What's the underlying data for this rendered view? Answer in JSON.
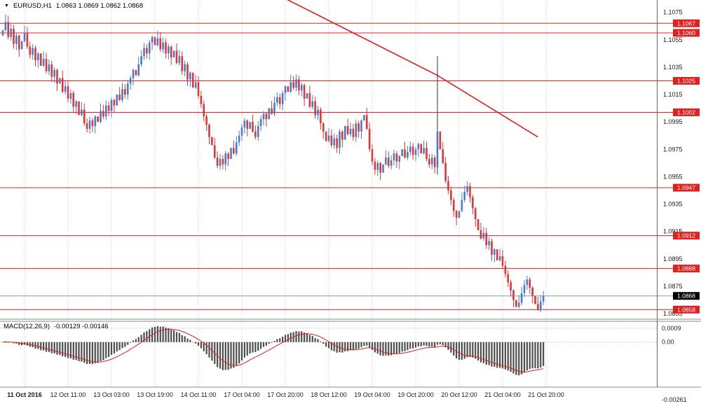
{
  "header": {
    "symbol_timeframe": "EURUSD,H1",
    "ohlc": "1.0863 1.0869 1.0862 1.0868"
  },
  "indicator_header": {
    "name": "MACD(12,26,9)",
    "values": "-0.00129 -0.00146"
  },
  "chart_data": {
    "type": "candlestick",
    "symbol": "EURUSD",
    "timeframe": "H1",
    "open_first": 1.1058,
    "closes": [
      1.1062,
      1.1068,
      1.1057,
      1.1063,
      1.1052,
      1.1058,
      1.1048,
      1.1054,
      1.106,
      1.105,
      1.1044,
      1.1049,
      1.104,
      1.1045,
      1.1036,
      1.1041,
      1.1032,
      1.1037,
      1.1028,
      1.1033,
      1.1023,
      1.1027,
      1.1017,
      1.1021,
      1.1012,
      1.1016,
      1.1006,
      1.101,
      1.1,
      1.1004,
      1.0994,
      1.099,
      1.0996,
      1.0992,
      1.0999,
      1.0995,
      1.1003,
      1.0999,
      1.1007,
      1.1003,
      1.1011,
      1.1007,
      1.1015,
      1.1011,
      1.1019,
      1.1015,
      1.1023,
      1.1027,
      1.1033,
      1.1029,
      1.1037,
      1.1043,
      1.1049,
      1.1045,
      1.1053,
      1.1057,
      1.1051,
      1.1056,
      1.1048,
      1.1053,
      1.1045,
      1.105,
      1.1042,
      1.1047,
      1.1038,
      1.1043,
      1.1032,
      1.1037,
      1.1026,
      1.1031,
      1.102,
      1.1024,
      1.1014,
      1.1008,
      1.0999,
      1.0993,
      1.0984,
      1.0978,
      1.0969,
      1.0963,
      1.0968,
      1.0964,
      1.0972,
      1.0968,
      1.0976,
      1.0972,
      1.098,
      1.0985,
      1.0991,
      1.0996,
      1.099,
      1.0995,
      1.0988,
      1.0984,
      1.0992,
      1.0997,
      1.1001,
      1.0997,
      1.1005,
      1.1001,
      1.1009,
      1.1013,
      1.1008,
      1.1016,
      1.1021,
      1.1017,
      1.1024,
      1.102,
      1.1026,
      1.1018,
      1.1022,
      1.1012,
      1.1016,
      1.1006,
      1.101,
      1.1,
      1.1004,
      1.0994,
      1.0988,
      1.0981,
      1.0985,
      1.0978,
      1.0983,
      1.0976,
      1.0988,
      1.0982,
      1.0992,
      1.0986,
      1.099,
      1.0984,
      1.0994,
      1.0988,
      1.0996,
      1.1,
      1.099,
      1.0975,
      1.0966,
      1.096,
      1.0965,
      1.0958,
      1.0964,
      1.0969,
      1.0963,
      1.0967,
      1.0972,
      1.0966,
      1.097,
      1.0975,
      1.0969,
      1.0973,
      1.0977,
      1.0971,
      1.0975,
      1.0979,
      1.0972,
      1.0976,
      1.0968,
      1.0964,
      1.0969,
      1.0962,
      1.0988,
      1.0975,
      1.0965,
      1.0952,
      1.0945,
      1.0938,
      1.093,
      1.0925,
      1.093,
      1.0938,
      1.0944,
      1.0948,
      1.094,
      1.0932,
      1.0924,
      1.0916,
      1.091,
      1.0914,
      1.0905,
      1.0908,
      1.0898,
      1.0902,
      1.0894,
      1.0897,
      1.089,
      1.0884,
      1.0878,
      1.0872,
      1.0865,
      1.086,
      1.0863,
      1.087,
      1.0876,
      1.088,
      1.0874,
      1.0868,
      1.0862,
      1.0858,
      1.0864,
      1.0868
    ],
    "wick_overrides": {
      "160": {
        "high": 1.1043,
        "color": "#333333"
      }
    },
    "price_axis_range": {
      "top": 1.1084,
      "bottom": 1.0851
    },
    "y_axis_ticks": [
      "1.1075",
      "1.1055",
      "1.1035",
      "1.1015",
      "1.0995",
      "1.0975",
      "1.0955",
      "1.0935",
      "1.0915",
      "1.0895",
      "1.0875",
      "1.0855"
    ],
    "x_axis_ticks": [
      {
        "label": "11 Oct 2016",
        "bar": 8
      },
      {
        "label": "12 Oct 11:00",
        "bar": 24
      },
      {
        "label": "13 Oct 03:00",
        "bar": 40
      },
      {
        "label": "13 Oct 19:00",
        "bar": 56
      },
      {
        "label": "14 Oct 11:00",
        "bar": 72
      },
      {
        "label": "17 Oct 04:00",
        "bar": 88
      },
      {
        "label": "17 Oct 20:00",
        "bar": 104
      },
      {
        "label": "18 Oct 12:00",
        "bar": 120
      },
      {
        "label": "19 Oct 04:00",
        "bar": 136
      },
      {
        "label": "19 Oct 20:00",
        "bar": 152
      },
      {
        "label": "20 Oct 12:00",
        "bar": 168
      },
      {
        "label": "21 Oct 04:00",
        "bar": 184
      },
      {
        "label": "21 Oct 20:00",
        "bar": 200
      }
    ],
    "price_levels": [
      {
        "price": 1.1067,
        "label": "1.1067"
      },
      {
        "price": 1.106,
        "label": "1.1060"
      },
      {
        "price": 1.1025,
        "label": "1.1025"
      },
      {
        "price": 1.1002,
        "label": "1.1002"
      },
      {
        "price": 1.0947,
        "label": "1.0947"
      },
      {
        "price": 1.0912,
        "label": "1.0912"
      },
      {
        "price": 1.0888,
        "label": "1.0888"
      },
      {
        "price": 1.0858,
        "label": "1.0858"
      }
    ],
    "current_price": {
      "price": 1.0868,
      "label": "1.0868"
    },
    "trendline": [
      {
        "bar": 104,
        "price": 1.1085
      },
      {
        "bar": 160,
        "price": 1.1029
      },
      {
        "bar": 197,
        "price": 1.0984
      }
    ],
    "indicator": {
      "type": "macd",
      "params": [
        12,
        26,
        9
      ],
      "range": {
        "top": 0.00135,
        "bottom": -0.00292
      },
      "axis_ticks": [
        {
          "label": "0.0009",
          "value": 0.0009
        },
        {
          "label": "0.00",
          "value": 0.0
        },
        {
          "label": "-0.00261",
          "value": -0.00261,
          "edge": "bottom"
        }
      ]
    },
    "colors": {
      "up": "#4a7bc8",
      "down": "#e23434",
      "level_line": "#e02020",
      "level_box": "#e22020",
      "current_box": "#000000",
      "current_line": "#7f9db9",
      "histogram": "#4d4d4d",
      "signal": "#e02020",
      "trend": "#e02020",
      "grid": "#c9c9c9",
      "axis_text": "#1a1a1a"
    }
  }
}
